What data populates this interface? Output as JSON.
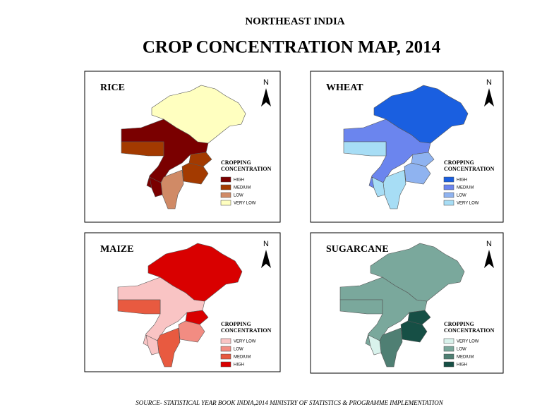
{
  "header": {
    "subtitle": "NORTHEAST INDIA",
    "title": "CROP CONCENTRATION MAP, 2014"
  },
  "panels": [
    {
      "title": "RICE",
      "north": "N",
      "legend_title": [
        "CROPPING",
        "CONCENTRATION"
      ],
      "legend": [
        {
          "label": "HIGH",
          "color": "#7a0000"
        },
        {
          "label": "MEDIUM",
          "color": "#a33a00"
        },
        {
          "label": "LOW",
          "color": "#d08a66"
        },
        {
          "label": "VERY LOW",
          "color": "#ffffc0"
        }
      ]
    },
    {
      "title": "WHEAT",
      "north": "N",
      "legend_title": [
        "CROPPING",
        "CONCENTRATION"
      ],
      "legend": [
        {
          "label": "HIGH",
          "color": "#1a5fe0"
        },
        {
          "label": "MEDIUM",
          "color": "#6b85ee"
        },
        {
          "label": "LOW",
          "color": "#8fb3f0"
        },
        {
          "label": "VERY LOW",
          "color": "#a7ddf5"
        }
      ]
    },
    {
      "title": "MAIZE",
      "north": "N",
      "legend_title": [
        "CROPPING",
        "CONCENTRATION"
      ],
      "legend": [
        {
          "label": "VERY LOW",
          "color": "#f9c4c4"
        },
        {
          "label": "LOW",
          "color": "#f28c82"
        },
        {
          "label": "MEDIUM",
          "color": "#e85a40"
        },
        {
          "label": "HIGH",
          "color": "#d90000"
        }
      ]
    },
    {
      "title": "SUGARCANE",
      "north": "N",
      "legend_title": [
        "CROPPING",
        "CONCENTRATION"
      ],
      "legend": [
        {
          "label": "VERY LOW",
          "color": "#d9f2ec"
        },
        {
          "label": "LOW",
          "color": "#7aa89c"
        },
        {
          "label": "MEDIUM",
          "color": "#4f7f73"
        },
        {
          "label": "HIGH",
          "color": "#164f45"
        }
      ]
    }
  ],
  "footer": {
    "source": "SOURCE- STATISTICAL YEAR BOOK INDIA,2014 MINISTRY OF STATISTICS & PROGRAMME IMPLEMENTATION"
  }
}
